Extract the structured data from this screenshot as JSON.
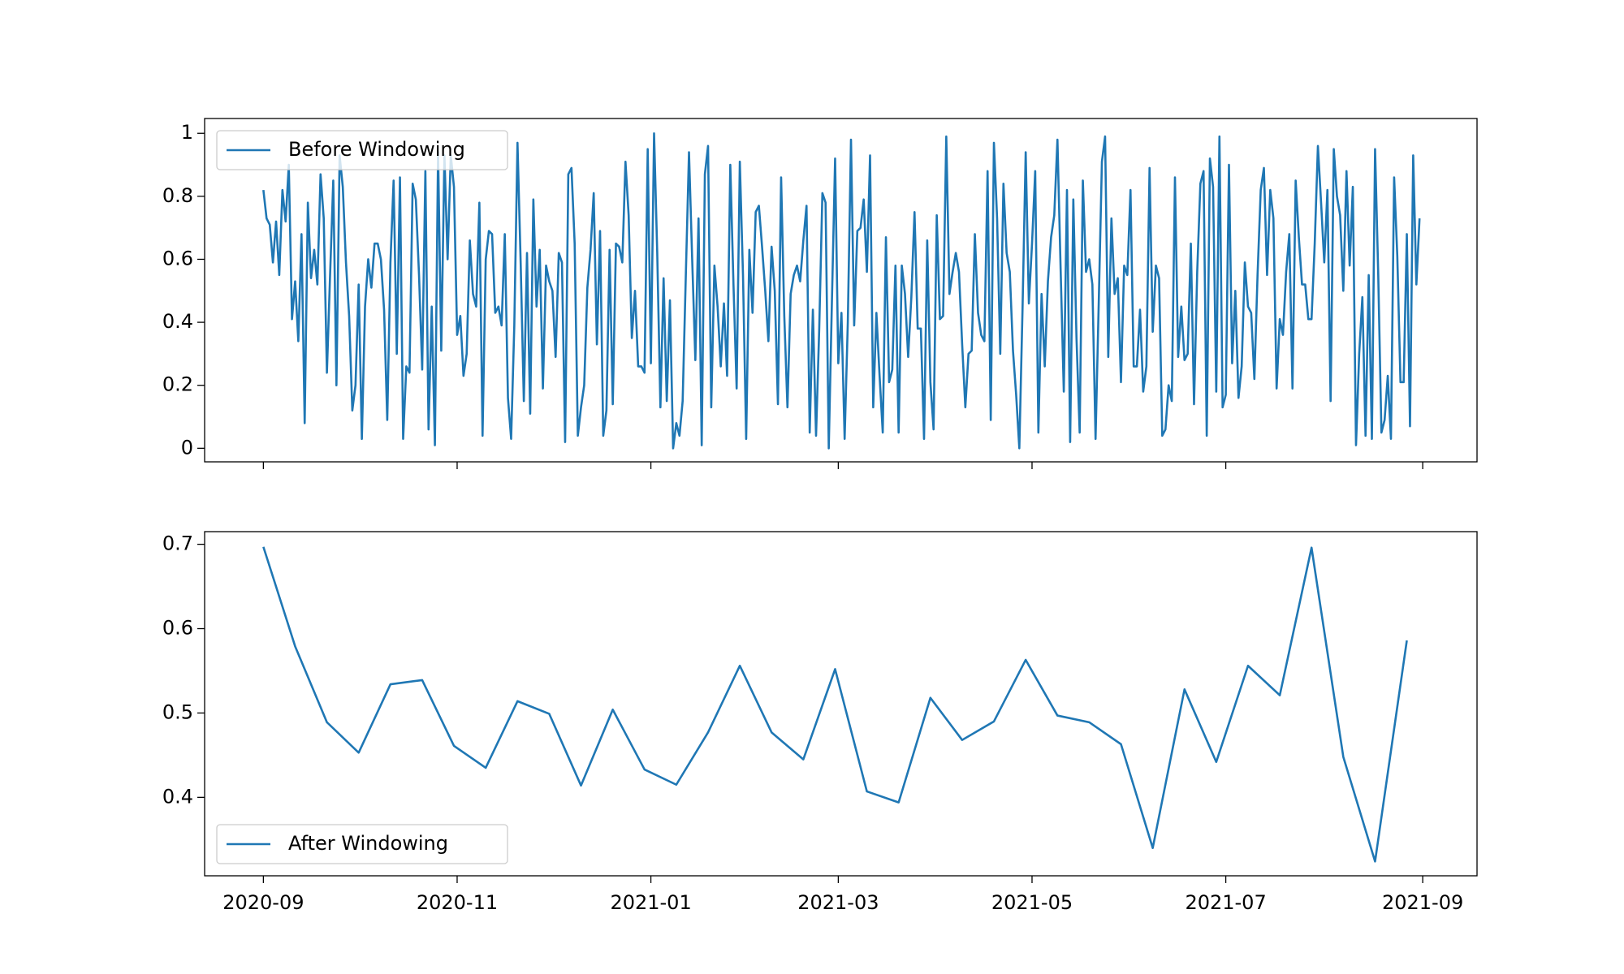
{
  "chart_data": [
    {
      "type": "line",
      "legend": "upper left",
      "x": [
        0,
        1,
        2,
        3,
        4,
        5,
        6,
        7,
        8,
        9,
        10,
        11,
        12,
        13,
        14,
        15,
        16,
        17,
        18,
        19,
        20,
        21,
        22,
        23,
        24,
        25,
        26,
        27,
        28,
        29,
        30,
        31,
        32,
        33,
        34,
        35,
        36,
        37,
        38,
        39,
        40,
        41,
        42,
        43,
        44,
        45,
        46,
        47,
        48,
        49,
        50,
        51,
        52,
        53,
        54,
        55,
        56,
        57,
        58,
        59,
        60,
        61,
        62,
        63,
        64,
        65,
        66,
        67,
        68,
        69,
        70,
        71,
        72,
        73,
        74,
        75,
        76,
        77,
        78,
        79,
        80,
        81,
        82,
        83,
        84,
        85,
        86,
        87,
        88,
        89,
        90,
        91,
        92,
        93,
        94,
        95,
        96,
        97,
        98,
        99,
        100,
        101,
        102,
        103,
        104,
        105,
        106,
        107,
        108,
        109,
        110,
        111,
        112,
        113,
        114,
        115,
        116,
        117,
        118,
        119,
        120,
        121,
        122,
        123,
        124,
        125,
        126,
        127,
        128,
        129,
        130,
        131,
        132,
        133,
        134,
        135,
        136,
        137,
        138,
        139,
        140,
        141,
        142,
        143,
        144,
        145,
        146,
        147,
        148,
        149,
        150,
        151,
        152,
        153,
        154,
        155,
        156,
        157,
        158,
        159,
        160,
        161,
        162,
        163,
        164,
        165,
        166,
        167,
        168,
        169,
        170,
        171,
        172,
        173,
        174,
        175,
        176,
        177,
        178,
        179,
        180,
        181,
        182,
        183,
        184,
        185,
        186,
        187,
        188,
        189,
        190,
        191,
        192,
        193,
        194,
        195,
        196,
        197,
        198,
        199,
        200,
        201,
        202,
        203,
        204,
        205,
        206,
        207,
        208,
        209,
        210,
        211,
        212,
        213,
        214,
        215,
        216,
        217,
        218,
        219,
        220,
        221,
        222,
        223,
        224,
        225,
        226,
        227,
        228,
        229,
        230,
        231,
        232,
        233,
        234,
        235,
        236,
        237,
        238,
        239,
        240,
        241,
        242,
        243,
        244,
        245,
        246,
        247,
        248,
        249,
        250,
        251,
        252,
        253,
        254,
        255,
        256,
        257,
        258,
        259,
        260,
        261,
        262,
        263,
        264,
        265,
        266,
        267,
        268,
        269,
        270,
        271,
        272,
        273,
        274,
        275,
        276,
        277,
        278,
        279,
        280,
        281,
        282,
        283,
        284,
        285,
        286,
        287,
        288,
        289,
        290,
        291,
        292,
        293,
        294,
        295,
        296,
        297,
        298,
        299,
        300,
        301,
        302,
        303,
        304,
        305,
        306,
        307,
        308,
        309,
        310,
        311,
        312,
        313,
        314,
        315,
        316,
        317,
        318,
        319,
        320,
        321,
        322,
        323,
        324,
        325,
        326,
        327,
        328,
        329,
        330,
        331,
        332,
        333,
        334,
        335,
        336,
        337,
        338,
        339,
        340,
        341,
        342,
        343,
        344,
        345,
        346,
        347,
        348,
        349,
        350,
        351,
        352,
        353,
        354,
        355,
        356,
        357,
        358,
        359,
        360,
        361,
        362,
        363,
        364
      ],
      "series": [
        {
          "name": "Before Windowing",
          "color": "#1f77b4",
          "values": [
            0.82,
            0.73,
            0.71,
            0.59,
            0.72,
            0.55,
            0.82,
            0.72,
            0.9,
            0.41,
            0.53,
            0.34,
            0.68,
            0.08,
            0.78,
            0.54,
            0.63,
            0.52,
            0.87,
            0.73,
            0.24,
            0.55,
            0.85,
            0.2,
            0.93,
            0.83,
            0.59,
            0.42,
            0.12,
            0.2,
            0.52,
            0.03,
            0.45,
            0.6,
            0.51,
            0.65,
            0.65,
            0.6,
            0.44,
            0.09,
            0.59,
            0.85,
            0.3,
            0.86,
            0.03,
            0.26,
            0.24,
            0.84,
            0.79,
            0.55,
            0.25,
            0.88,
            0.06,
            0.45,
            0.01,
            0.94,
            0.31,
            0.93,
            0.6,
            0.93,
            0.83,
            0.36,
            0.42,
            0.23,
            0.3,
            0.66,
            0.49,
            0.45,
            0.78,
            0.04,
            0.6,
            0.69,
            0.68,
            0.43,
            0.45,
            0.39,
            0.68,
            0.16,
            0.03,
            0.39,
            0.97,
            0.59,
            0.15,
            0.62,
            0.11,
            0.79,
            0.45,
            0.63,
            0.19,
            0.58,
            0.53,
            0.5,
            0.29,
            0.62,
            0.59,
            0.02,
            0.87,
            0.89,
            0.65,
            0.04,
            0.13,
            0.2,
            0.51,
            0.63,
            0.81,
            0.33,
            0.69,
            0.04,
            0.12,
            0.63,
            0.14,
            0.65,
            0.64,
            0.59,
            0.91,
            0.74,
            0.35,
            0.5,
            0.26,
            0.26,
            0.24,
            0.95,
            0.27,
            1.0,
            0.62,
            0.13,
            0.54,
            0.15,
            0.47,
            0.0,
            0.08,
            0.04,
            0.15,
            0.55,
            0.94,
            0.6,
            0.28,
            0.73,
            0.01,
            0.87,
            0.96,
            0.13,
            0.58,
            0.45,
            0.26,
            0.46,
            0.23,
            0.9,
            0.52,
            0.19,
            0.91,
            0.55,
            0.03,
            0.63,
            0.43,
            0.75,
            0.77,
            0.64,
            0.5,
            0.34,
            0.64,
            0.5,
            0.14,
            0.86,
            0.42,
            0.13,
            0.49,
            0.55,
            0.58,
            0.53,
            0.66,
            0.77,
            0.05,
            0.44,
            0.04,
            0.38,
            0.81,
            0.78,
            0.0,
            0.47,
            0.92,
            0.27,
            0.43,
            0.03,
            0.4,
            0.98,
            0.39,
            0.69,
            0.7,
            0.79,
            0.56,
            0.93,
            0.13,
            0.43,
            0.23,
            0.05,
            0.67,
            0.21,
            0.25,
            0.58,
            0.05,
            0.58,
            0.49,
            0.29,
            0.48,
            0.75,
            0.38,
            0.38,
            0.03,
            0.66,
            0.21,
            0.06,
            0.74,
            0.41,
            0.42,
            0.99,
            0.49,
            0.56,
            0.62,
            0.56,
            0.33,
            0.13,
            0.3,
            0.31,
            0.68,
            0.43,
            0.36,
            0.34,
            0.88,
            0.09,
            0.97,
            0.73,
            0.3,
            0.84,
            0.62,
            0.56,
            0.31,
            0.17,
            0.0,
            0.44,
            0.94,
            0.46,
            0.65,
            0.88,
            0.05,
            0.49,
            0.26,
            0.53,
            0.67,
            0.74,
            0.98,
            0.57,
            0.18,
            0.82,
            0.02,
            0.79,
            0.35,
            0.05,
            0.85,
            0.56,
            0.6,
            0.52,
            0.03,
            0.46,
            0.91,
            0.99,
            0.29,
            0.73,
            0.49,
            0.54,
            0.21,
            0.58,
            0.55,
            0.82,
            0.26,
            0.26,
            0.44,
            0.18,
            0.26,
            0.89,
            0.37,
            0.58,
            0.54,
            0.04,
            0.06,
            0.2,
            0.15,
            0.86,
            0.29,
            0.45,
            0.28,
            0.3,
            0.65,
            0.14,
            0.56,
            0.84,
            0.88,
            0.04,
            0.92,
            0.83,
            0.18,
            0.99,
            0.13,
            0.17,
            0.9,
            0.27,
            0.5,
            0.16,
            0.26,
            0.59,
            0.45,
            0.43,
            0.22,
            0.55,
            0.82,
            0.89,
            0.55,
            0.82,
            0.73,
            0.19,
            0.41,
            0.36,
            0.56,
            0.68,
            0.19,
            0.85,
            0.67,
            0.52,
            0.52,
            0.41,
            0.41,
            0.65,
            0.96,
            0.78,
            0.59,
            0.82,
            0.15,
            0.95,
            0.8,
            0.74,
            0.5,
            0.88,
            0.58,
            0.83,
            0.01,
            0.3,
            0.48,
            0.04,
            0.55,
            0.03,
            0.95,
            0.55,
            0.05,
            0.09,
            0.23,
            0.03,
            0.86,
            0.61,
            0.21,
            0.21,
            0.68,
            0.07,
            0.93,
            0.52,
            0.73
          ]
        }
      ],
      "xlim": [
        -18.5,
        382.1
      ],
      "xticks": [
        0,
        61,
        122,
        181,
        242,
        303,
        365
      ],
      "ylim": [
        -0.043,
        1.047
      ],
      "yticks": [
        0.0,
        0.2,
        0.4,
        0.6,
        0.8,
        1.0
      ]
    },
    {
      "type": "line",
      "legend": "lower left",
      "x": [
        0,
        10,
        20,
        30,
        40,
        50,
        60,
        70,
        80,
        90,
        100,
        110,
        120,
        130,
        140,
        150,
        160,
        170,
        180,
        190,
        200,
        210,
        220,
        230,
        240,
        250,
        260,
        270,
        280,
        290,
        300,
        310,
        320,
        330,
        340,
        350,
        360
      ],
      "series": [
        {
          "name": "After Windowing",
          "color": "#1f77b4",
          "values": [
            0.697,
            0.579,
            0.489,
            0.453,
            0.534,
            0.539,
            0.461,
            0.435,
            0.514,
            0.499,
            0.414,
            0.504,
            0.433,
            0.415,
            0.477,
            0.556,
            0.477,
            0.445,
            0.552,
            0.407,
            0.394,
            0.518,
            0.468,
            0.49,
            0.563,
            0.497,
            0.489,
            0.463,
            0.34,
            0.528,
            0.442,
            0.556,
            0.521,
            0.696,
            0.448,
            0.324,
            0.586
          ]
        }
      ],
      "xlim": [
        -18.5,
        382.1
      ],
      "xticks": [
        {
          "value": 0,
          "label": "2020-09"
        },
        {
          "value": 61,
          "label": "2020-11"
        },
        {
          "value": 122,
          "label": "2021-01"
        },
        {
          "value": 181,
          "label": "2021-03"
        },
        {
          "value": 242,
          "label": "2021-05"
        },
        {
          "value": 303,
          "label": "2021-07"
        },
        {
          "value": 365,
          "label": "2021-09"
        }
      ],
      "ylim": [
        0.307,
        0.715
      ],
      "yticks": [
        0.4,
        0.5,
        0.6,
        0.7
      ]
    }
  ]
}
